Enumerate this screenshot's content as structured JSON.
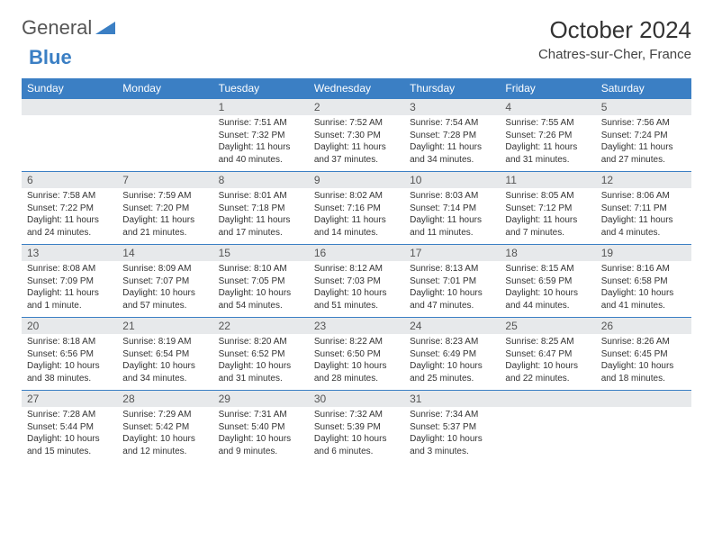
{
  "logo": {
    "part1": "General",
    "part2": "Blue"
  },
  "title": "October 2024",
  "location": "Chatres-sur-Cher, France",
  "day_names": [
    "Sunday",
    "Monday",
    "Tuesday",
    "Wednesday",
    "Thursday",
    "Friday",
    "Saturday"
  ],
  "colors": {
    "header_bg": "#3b7fc4",
    "header_text": "#ffffff",
    "daynum_bg": "#e7e9eb",
    "daynum_border": "#3b7fc4",
    "text": "#333333"
  },
  "weeks": [
    [
      null,
      null,
      {
        "n": "1",
        "sr": "7:51 AM",
        "ss": "7:32 PM",
        "dl": "11 hours and 40 minutes."
      },
      {
        "n": "2",
        "sr": "7:52 AM",
        "ss": "7:30 PM",
        "dl": "11 hours and 37 minutes."
      },
      {
        "n": "3",
        "sr": "7:54 AM",
        "ss": "7:28 PM",
        "dl": "11 hours and 34 minutes."
      },
      {
        "n": "4",
        "sr": "7:55 AM",
        "ss": "7:26 PM",
        "dl": "11 hours and 31 minutes."
      },
      {
        "n": "5",
        "sr": "7:56 AM",
        "ss": "7:24 PM",
        "dl": "11 hours and 27 minutes."
      }
    ],
    [
      {
        "n": "6",
        "sr": "7:58 AM",
        "ss": "7:22 PM",
        "dl": "11 hours and 24 minutes."
      },
      {
        "n": "7",
        "sr": "7:59 AM",
        "ss": "7:20 PM",
        "dl": "11 hours and 21 minutes."
      },
      {
        "n": "8",
        "sr": "8:01 AM",
        "ss": "7:18 PM",
        "dl": "11 hours and 17 minutes."
      },
      {
        "n": "9",
        "sr": "8:02 AM",
        "ss": "7:16 PM",
        "dl": "11 hours and 14 minutes."
      },
      {
        "n": "10",
        "sr": "8:03 AM",
        "ss": "7:14 PM",
        "dl": "11 hours and 11 minutes."
      },
      {
        "n": "11",
        "sr": "8:05 AM",
        "ss": "7:12 PM",
        "dl": "11 hours and 7 minutes."
      },
      {
        "n": "12",
        "sr": "8:06 AM",
        "ss": "7:11 PM",
        "dl": "11 hours and 4 minutes."
      }
    ],
    [
      {
        "n": "13",
        "sr": "8:08 AM",
        "ss": "7:09 PM",
        "dl": "11 hours and 1 minute."
      },
      {
        "n": "14",
        "sr": "8:09 AM",
        "ss": "7:07 PM",
        "dl": "10 hours and 57 minutes."
      },
      {
        "n": "15",
        "sr": "8:10 AM",
        "ss": "7:05 PM",
        "dl": "10 hours and 54 minutes."
      },
      {
        "n": "16",
        "sr": "8:12 AM",
        "ss": "7:03 PM",
        "dl": "10 hours and 51 minutes."
      },
      {
        "n": "17",
        "sr": "8:13 AM",
        "ss": "7:01 PM",
        "dl": "10 hours and 47 minutes."
      },
      {
        "n": "18",
        "sr": "8:15 AM",
        "ss": "6:59 PM",
        "dl": "10 hours and 44 minutes."
      },
      {
        "n": "19",
        "sr": "8:16 AM",
        "ss": "6:58 PM",
        "dl": "10 hours and 41 minutes."
      }
    ],
    [
      {
        "n": "20",
        "sr": "8:18 AM",
        "ss": "6:56 PM",
        "dl": "10 hours and 38 minutes."
      },
      {
        "n": "21",
        "sr": "8:19 AM",
        "ss": "6:54 PM",
        "dl": "10 hours and 34 minutes."
      },
      {
        "n": "22",
        "sr": "8:20 AM",
        "ss": "6:52 PM",
        "dl": "10 hours and 31 minutes."
      },
      {
        "n": "23",
        "sr": "8:22 AM",
        "ss": "6:50 PM",
        "dl": "10 hours and 28 minutes."
      },
      {
        "n": "24",
        "sr": "8:23 AM",
        "ss": "6:49 PM",
        "dl": "10 hours and 25 minutes."
      },
      {
        "n": "25",
        "sr": "8:25 AM",
        "ss": "6:47 PM",
        "dl": "10 hours and 22 minutes."
      },
      {
        "n": "26",
        "sr": "8:26 AM",
        "ss": "6:45 PM",
        "dl": "10 hours and 18 minutes."
      }
    ],
    [
      {
        "n": "27",
        "sr": "7:28 AM",
        "ss": "5:44 PM",
        "dl": "10 hours and 15 minutes."
      },
      {
        "n": "28",
        "sr": "7:29 AM",
        "ss": "5:42 PM",
        "dl": "10 hours and 12 minutes."
      },
      {
        "n": "29",
        "sr": "7:31 AM",
        "ss": "5:40 PM",
        "dl": "10 hours and 9 minutes."
      },
      {
        "n": "30",
        "sr": "7:32 AM",
        "ss": "5:39 PM",
        "dl": "10 hours and 6 minutes."
      },
      {
        "n": "31",
        "sr": "7:34 AM",
        "ss": "5:37 PM",
        "dl": "10 hours and 3 minutes."
      },
      null,
      null
    ]
  ],
  "labels": {
    "sunrise": "Sunrise: ",
    "sunset": "Sunset: ",
    "daylight": "Daylight: "
  }
}
